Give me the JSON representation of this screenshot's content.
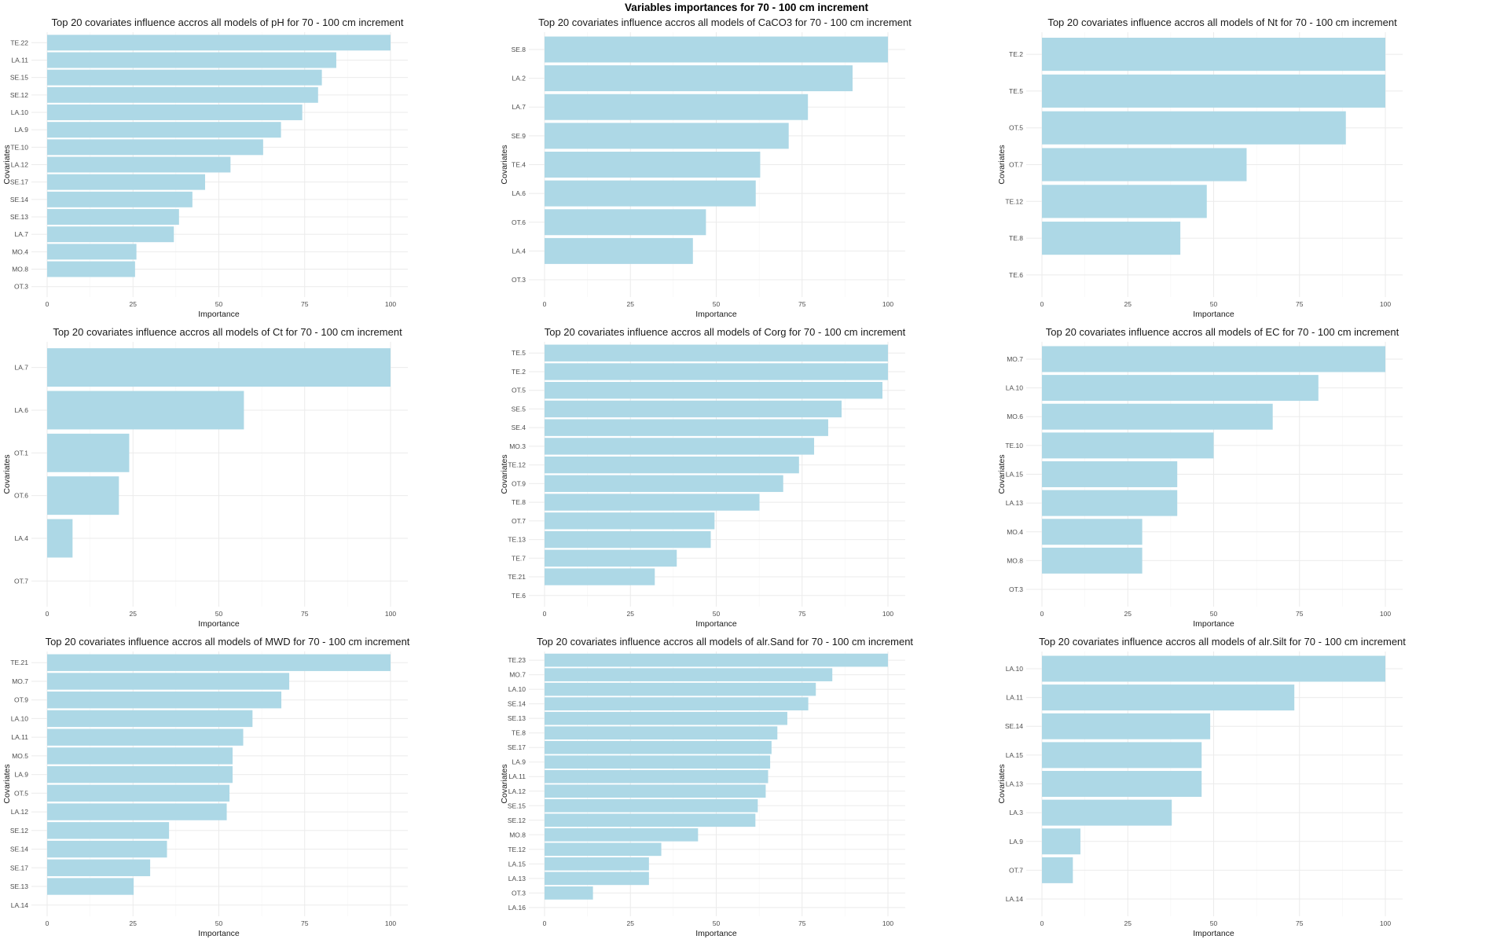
{
  "main_title": "Variables importances for 70 - 100 cm increment",
  "colors": {
    "bar": "#ADD8E6",
    "grid_major": "#EBEBEB",
    "grid_minor": "#F5F5F5"
  },
  "chart_data": [
    {
      "type": "bar",
      "orientation": "horizontal",
      "title": "Top 20 covariates influence accros all models of pH for 70 - 100 cm increment",
      "xlabel": "Importance",
      "ylabel": "Covariates",
      "xlim": [
        0,
        100
      ],
      "xticks": [
        "0",
        "25",
        "50",
        "75",
        "100"
      ],
      "grid": true,
      "categories": [
        "TE.22",
        "LA.11",
        "SE.15",
        "SE.12",
        "LA.10",
        "LA.9",
        "TE.10",
        "LA.12",
        "SE.17",
        "SE.14",
        "SE.13",
        "LA.7",
        "MO.4",
        "MO.8",
        "OT.3"
      ],
      "values": [
        100,
        84.2,
        80.0,
        78.9,
        74.3,
        68.1,
        62.9,
        53.4,
        46.0,
        42.3,
        38.4,
        36.9,
        26.0,
        25.6,
        0
      ]
    },
    {
      "type": "bar",
      "orientation": "horizontal",
      "title": "Top 20 covariates influence accros all models of CaCO3 for 70 - 100 cm increment",
      "xlabel": "Importance",
      "ylabel": "Covariates",
      "xlim": [
        0,
        100
      ],
      "xticks": [
        "0",
        "25",
        "50",
        "75",
        "100"
      ],
      "grid": true,
      "categories": [
        "SE.8",
        "LA.2",
        "LA.7",
        "SE.9",
        "TE.4",
        "LA.6",
        "OT.6",
        "LA.4",
        "OT.3"
      ],
      "values": [
        100,
        89.7,
        76.7,
        71.1,
        62.8,
        61.5,
        47.0,
        43.2,
        0
      ]
    },
    {
      "type": "bar",
      "orientation": "horizontal",
      "title": "Top 20 covariates influence accros all models of Nt for 70 - 100 cm increment",
      "xlabel": "Importance",
      "ylabel": "Covariates",
      "xlim": [
        0,
        100
      ],
      "xticks": [
        "0",
        "25",
        "50",
        "75",
        "100"
      ],
      "grid": true,
      "categories": [
        "TE.2",
        "TE.5",
        "OT.5",
        "OT.7",
        "TE.12",
        "TE.8",
        "TE.6"
      ],
      "values": [
        100,
        100,
        88.5,
        59.6,
        48.0,
        40.3,
        0
      ]
    },
    {
      "type": "bar",
      "orientation": "horizontal",
      "title": "Top 20 covariates influence accros all models of Ct for 70 - 100 cm increment",
      "xlabel": "Importance",
      "ylabel": "Covariates",
      "xlim": [
        0,
        100
      ],
      "xticks": [
        "0",
        "25",
        "50",
        "75",
        "100"
      ],
      "grid": true,
      "categories": [
        "LA.7",
        "LA.6",
        "OT.1",
        "OT.6",
        "LA.4",
        "OT.7"
      ],
      "values": [
        100,
        57.3,
        23.9,
        20.9,
        7.4,
        0
      ]
    },
    {
      "type": "bar",
      "orientation": "horizontal",
      "title": "Top 20 covariates influence accros all models of Corg for 70 - 100 cm increment",
      "xlabel": "Importance",
      "ylabel": "Covariates",
      "xlim": [
        0,
        100
      ],
      "xticks": [
        "0",
        "25",
        "50",
        "75",
        "100"
      ],
      "grid": true,
      "categories": [
        "TE.5",
        "TE.2",
        "OT.5",
        "SE.5",
        "SE.4",
        "MO.3",
        "TE.12",
        "OT.9",
        "TE.8",
        "OT.7",
        "TE.13",
        "TE.7",
        "TE.21",
        "TE.6"
      ],
      "values": [
        100,
        100,
        98.4,
        86.5,
        82.6,
        78.5,
        74.1,
        69.5,
        62.6,
        49.5,
        48.4,
        38.5,
        32.1,
        0
      ]
    },
    {
      "type": "bar",
      "orientation": "horizontal",
      "title": "Top 20 covariates influence accros all models of EC for 70 - 100 cm increment",
      "xlabel": "Importance",
      "ylabel": "Covariates",
      "xlim": [
        0,
        100
      ],
      "xticks": [
        "0",
        "25",
        "50",
        "75",
        "100"
      ],
      "grid": true,
      "categories": [
        "MO.7",
        "LA.10",
        "MO.6",
        "TE.10",
        "LA.15",
        "LA.13",
        "MO.4",
        "MO.8",
        "OT.3"
      ],
      "values": [
        100,
        80.5,
        67.2,
        50.0,
        39.4,
        39.4,
        29.2,
        29.2,
        0
      ]
    },
    {
      "type": "bar",
      "orientation": "horizontal",
      "title": "Top 20 covariates influence accros all models of MWD for 70 - 100 cm increment",
      "xlabel": "Importance",
      "ylabel": "Covariates",
      "xlim": [
        0,
        100
      ],
      "xticks": [
        "0",
        "25",
        "50",
        "75",
        "100"
      ],
      "grid": true,
      "categories": [
        "TE.21",
        "MO.7",
        "OT.9",
        "LA.10",
        "LA.11",
        "MO.5",
        "LA.9",
        "OT.5",
        "LA.12",
        "SE.12",
        "SE.14",
        "SE.17",
        "SE.13",
        "LA.14"
      ],
      "values": [
        100,
        70.5,
        68.2,
        59.8,
        57.1,
        54.0,
        54.0,
        53.1,
        52.3,
        35.5,
        34.9,
        30.0,
        25.2,
        0
      ]
    },
    {
      "type": "bar",
      "orientation": "horizontal",
      "title": "Top 20 covariates influence accros all models of alr.Sand for 70 - 100 cm increment",
      "xlabel": "Importance",
      "ylabel": "Covariates",
      "xlim": [
        0,
        100
      ],
      "xticks": [
        "0",
        "25",
        "50",
        "75",
        "100"
      ],
      "grid": true,
      "categories": [
        "TE.23",
        "MO.7",
        "LA.10",
        "SE.14",
        "SE.13",
        "TE.8",
        "SE.17",
        "LA.9",
        "LA.11",
        "LA.12",
        "SE.15",
        "SE.12",
        "MO.8",
        "TE.12",
        "LA.15",
        "LA.13",
        "OT.3",
        "LA.16"
      ],
      "values": [
        100,
        83.8,
        79.0,
        76.8,
        70.7,
        67.8,
        66.1,
        65.7,
        65.1,
        64.4,
        62.1,
        61.4,
        44.7,
        34.0,
        30.4,
        30.4,
        14.1,
        0
      ]
    },
    {
      "type": "bar",
      "orientation": "horizontal",
      "title": "Top 20 covariates influence accros all models of alr.Silt for 70 - 100 cm increment",
      "xlabel": "Importance",
      "ylabel": "Covariates",
      "xlim": [
        0,
        100
      ],
      "xticks": [
        "0",
        "25",
        "50",
        "75",
        "100"
      ],
      "grid": true,
      "categories": [
        "LA.10",
        "LA.11",
        "SE.14",
        "LA.15",
        "LA.13",
        "LA.3",
        "LA.9",
        "OT.7",
        "LA.14"
      ],
      "values": [
        100,
        73.5,
        49.0,
        46.5,
        46.5,
        37.8,
        11.2,
        9.0,
        0
      ]
    }
  ]
}
